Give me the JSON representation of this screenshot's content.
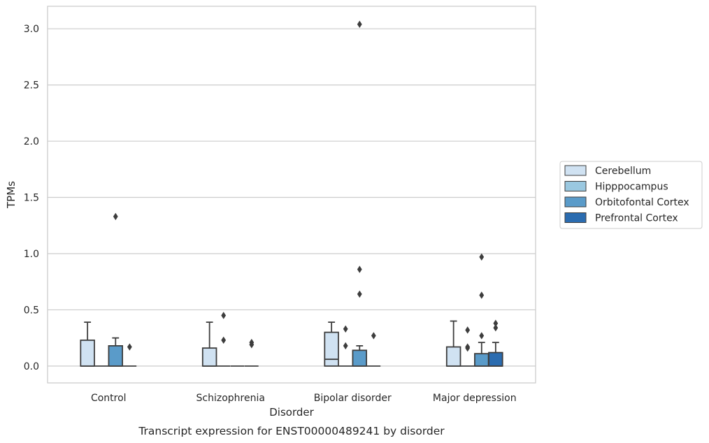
{
  "chart_data": {
    "type": "box",
    "title": "",
    "caption": "Transcript expression for ENST00000489241 by disorder",
    "xlabel": "Disorder",
    "ylabel": "TPMs",
    "ylim": [
      -0.15,
      3.2
    ],
    "yticks": [
      0.0,
      0.5,
      1.0,
      1.5,
      2.0,
      2.5,
      3.0
    ],
    "ytick_labels": [
      "0.0",
      "0.5",
      "1.0",
      "1.5",
      "2.0",
      "2.5",
      "3.0"
    ],
    "grid": "horizontal",
    "legend_position": "right",
    "categories": [
      "Control",
      "Schizophrenia",
      "Bipolar disorder",
      "Major depression"
    ],
    "series": [
      {
        "name": "Cerebellum",
        "color": "#d0e2f2",
        "boxes": [
          {
            "q1": 0.0,
            "median": 0.0,
            "q3": 0.23,
            "whisker_low": 0.0,
            "whisker_high": 0.39,
            "outliers": []
          },
          {
            "q1": 0.0,
            "median": 0.0,
            "q3": 0.16,
            "whisker_low": 0.0,
            "whisker_high": 0.39,
            "outliers": []
          },
          {
            "q1": 0.0,
            "median": 0.06,
            "q3": 0.3,
            "whisker_low": 0.0,
            "whisker_high": 0.39,
            "outliers": []
          },
          {
            "q1": 0.0,
            "median": 0.0,
            "q3": 0.17,
            "whisker_low": 0.0,
            "whisker_high": 0.4,
            "outliers": []
          }
        ]
      },
      {
        "name": "Hipppocampus",
        "color": "#9ac8e0",
        "boxes": [
          {
            "q1": 0.0,
            "median": 0.0,
            "q3": 0.0,
            "whisker_low": 0.0,
            "whisker_high": 0.0,
            "outliers": []
          },
          {
            "q1": 0.0,
            "median": 0.0,
            "q3": 0.0,
            "whisker_low": 0.0,
            "whisker_high": 0.0,
            "outliers": [
              0.45,
              0.23
            ]
          },
          {
            "q1": 0.0,
            "median": 0.0,
            "q3": 0.0,
            "whisker_low": 0.0,
            "whisker_high": 0.0,
            "outliers": [
              0.33,
              0.18
            ]
          },
          {
            "q1": 0.0,
            "median": 0.0,
            "q3": 0.0,
            "whisker_low": 0.0,
            "whisker_high": 0.0,
            "outliers": [
              0.32,
              0.17,
              0.16
            ]
          }
        ]
      },
      {
        "name": "Orbitofontal Cortex",
        "color": "#5a9bc9",
        "boxes": [
          {
            "q1": 0.0,
            "median": 0.0,
            "q3": 0.18,
            "whisker_low": 0.0,
            "whisker_high": 0.25,
            "outliers": [
              1.33
            ]
          },
          {
            "q1": 0.0,
            "median": 0.0,
            "q3": 0.0,
            "whisker_low": 0.0,
            "whisker_high": 0.0,
            "outliers": []
          },
          {
            "q1": 0.0,
            "median": 0.0,
            "q3": 0.14,
            "whisker_low": 0.0,
            "whisker_high": 0.18,
            "outliers": [
              3.04,
              0.86,
              0.64
            ]
          },
          {
            "q1": 0.0,
            "median": 0.0,
            "q3": 0.11,
            "whisker_low": 0.0,
            "whisker_high": 0.21,
            "outliers": [
              0.97,
              0.63,
              0.27
            ]
          }
        ]
      },
      {
        "name": "Prefrontal Cortex",
        "color": "#2b6cb0",
        "boxes": [
          {
            "q1": 0.0,
            "median": 0.0,
            "q3": 0.0,
            "whisker_low": 0.0,
            "whisker_high": 0.0,
            "outliers": [
              0.17
            ]
          },
          {
            "q1": 0.0,
            "median": 0.0,
            "q3": 0.0,
            "whisker_low": 0.0,
            "whisker_high": 0.0,
            "outliers": [
              0.21,
              0.19
            ]
          },
          {
            "q1": 0.0,
            "median": 0.0,
            "q3": 0.0,
            "whisker_low": 0.0,
            "whisker_high": 0.0,
            "outliers": [
              0.27
            ]
          },
          {
            "q1": 0.0,
            "median": 0.0,
            "q3": 0.12,
            "whisker_low": 0.0,
            "whisker_high": 0.21,
            "outliers": [
              0.38,
              0.34
            ]
          }
        ]
      }
    ]
  }
}
